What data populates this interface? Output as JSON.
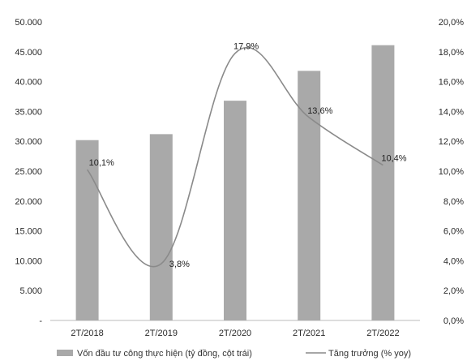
{
  "chart_data": {
    "type": "bar+line",
    "categories": [
      "2T/2018",
      "2T/2019",
      "2T/2020",
      "2T/2021",
      "2T/2022"
    ],
    "series": [
      {
        "name": "Vốn đầu tư công thực hiện (tỷ đồng, cột trái)",
        "type": "bar",
        "axis": "left",
        "values": [
          30200,
          31200,
          36800,
          41800,
          46100
        ],
        "color": "#a9a9a9"
      },
      {
        "name": "Tăng trưởng (% yoy)",
        "type": "line",
        "axis": "right",
        "values": [
          10.1,
          3.8,
          17.9,
          13.6,
          10.4
        ],
        "labels": [
          "10,1%",
          "3,8%",
          "17,9%",
          "13,6%",
          "10,4%"
        ],
        "color": "#8a8a8a"
      }
    ],
    "y_left": {
      "lim": [
        0,
        50000
      ],
      "ticks": [
        0,
        5000,
        10000,
        15000,
        20000,
        25000,
        30000,
        35000,
        40000,
        45000,
        50000
      ],
      "tick_labels": [
        "-",
        "5.000",
        "10.000",
        "15.000",
        "20.000",
        "25.000",
        "30.000",
        "35.000",
        "40.000",
        "45.000",
        "50.000"
      ]
    },
    "y_right": {
      "lim": [
        0,
        20
      ],
      "ticks": [
        0,
        2,
        4,
        6,
        8,
        10,
        12,
        14,
        16,
        18,
        20
      ],
      "tick_labels": [
        "0,0%",
        "2,0%",
        "4,0%",
        "6,0%",
        "8,0%",
        "10,0%",
        "12,0%",
        "14,0%",
        "16,0%",
        "18,0%",
        "20,0%"
      ]
    },
    "legend_position": "bottom"
  }
}
